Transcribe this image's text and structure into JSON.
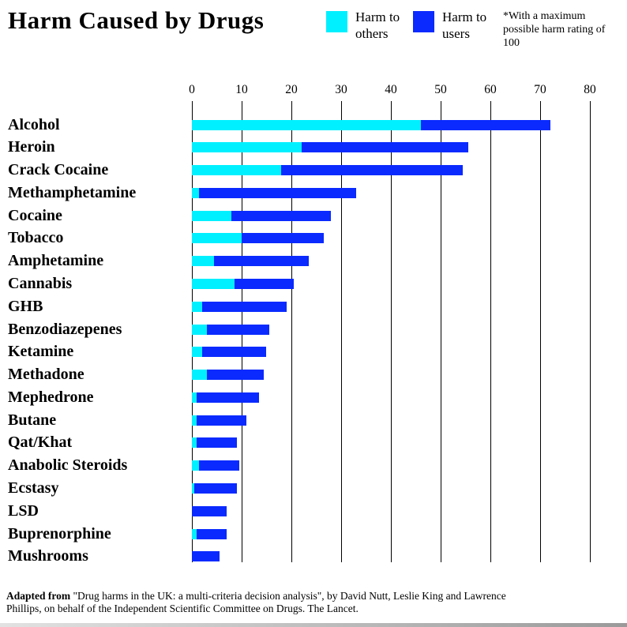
{
  "title": "Harm Caused by Drugs",
  "legend": {
    "items": [
      {
        "label": "Harm to others",
        "color": "#00F0FF"
      },
      {
        "label": "Harm to users",
        "color": "#0A2AFE"
      }
    ]
  },
  "note": "*With a maximum possible harm rating of 100",
  "axis": {
    "min": 0,
    "max": 80,
    "ticks": [
      "0",
      "10",
      "20",
      "30",
      "40",
      "50",
      "60",
      "70",
      "80"
    ]
  },
  "chart_data": {
    "type": "bar",
    "orientation": "horizontal",
    "stacked": true,
    "title": "Harm Caused by Drugs",
    "xlabel": "",
    "ylabel": "",
    "xlim": [
      0,
      80
    ],
    "grid": "vertical-lines",
    "legend_position": "top",
    "note": "*With a maximum possible harm rating of 100",
    "categories": [
      "Alcohol",
      "Heroin",
      "Crack Cocaine",
      "Methamphetamine",
      "Cocaine",
      "Tobacco",
      "Amphetamine",
      "Cannabis",
      "GHB",
      "Benzodiazepenes",
      "Ketamine",
      "Methadone",
      "Mephedrone",
      "Butane",
      "Qat/Khat",
      "Anabolic Steroids",
      "Ecstasy",
      "LSD",
      "Buprenorphine",
      "Mushrooms"
    ],
    "series": [
      {
        "name": "Harm to others",
        "color": "#00F0FF",
        "values": [
          46,
          22,
          18,
          1.5,
          8,
          10,
          4.5,
          8.5,
          2,
          3,
          2,
          3,
          1,
          1,
          1,
          1.5,
          0.5,
          0,
          1,
          0
        ]
      },
      {
        "name": "Harm to users",
        "color": "#0A2AFE",
        "values": [
          26,
          33.5,
          36.5,
          31.5,
          20,
          16.5,
          19,
          12,
          17,
          12.5,
          13,
          11.5,
          12.5,
          10,
          8,
          8,
          8.5,
          7,
          6,
          5.5
        ]
      }
    ],
    "totals": [
      72,
      55.5,
      54.5,
      33,
      28,
      26.5,
      23.5,
      20.5,
      19,
      15.5,
      15,
      14.5,
      13.5,
      11,
      9,
      9.5,
      9,
      7,
      7,
      5.5
    ]
  },
  "footer": {
    "bold": "Adapted from",
    "rest": " \"Drug harms in the UK: a multi-criteria decision analysis\", by David Nutt, Leslie King and Lawrence Phillips, on behalf of the Independent Scientific Committee on Drugs. The Lancet."
  }
}
